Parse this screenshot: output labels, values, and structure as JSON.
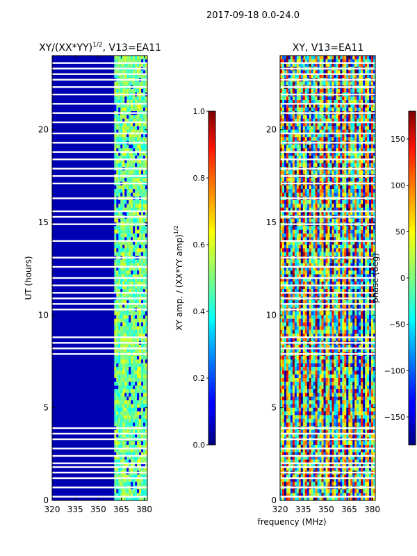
{
  "figure": {
    "suptitle": "2017-09-18 0.0-24.0"
  },
  "chart_data": [
    {
      "type": "heatmap",
      "title_text": "XY/(XX*YY)",
      "title_sup": "1/2",
      "title_rest": ", V13=EA11",
      "xlabel": "",
      "ylabel": "UT (hours)",
      "xlim": [
        320,
        382
      ],
      "ylim": [
        0,
        24
      ],
      "xticks": [
        "320",
        "335",
        "350",
        "365",
        "380"
      ],
      "xtick_values": [
        320,
        335,
        350,
        365,
        380
      ],
      "yticks": [
        "0",
        "5",
        "10",
        "15",
        "20"
      ],
      "ytick_values": [
        0,
        5,
        10,
        15,
        20
      ],
      "colorbar": {
        "label_text": "XY amp. / (XX*YY amp)",
        "label_sup": "1/2",
        "range": [
          0.0,
          1.0
        ],
        "ticks": [
          "0.0",
          "0.2",
          "0.4",
          "0.6",
          "0.8",
          "1.0"
        ],
        "tick_values": [
          0.0,
          0.2,
          0.4,
          0.6,
          0.8,
          1.0
        ]
      },
      "colormap": "jet",
      "description_values": {
        "low_band_value": 0.05,
        "high_band_start_mhz": 360,
        "high_band_value_range": [
          0.3,
          0.65
        ]
      }
    },
    {
      "type": "heatmap",
      "title": "XY, V13=EA11",
      "xlabel": "frequency (MHz)",
      "ylabel": "",
      "xlim": [
        320,
        382
      ],
      "ylim": [
        0,
        24
      ],
      "xticks": [
        "320",
        "335",
        "350",
        "365",
        "380"
      ],
      "xtick_values": [
        320,
        335,
        350,
        365,
        380
      ],
      "yticks": [
        "0",
        "5",
        "10",
        "15",
        "20"
      ],
      "ytick_values": [
        0,
        5,
        10,
        15,
        20
      ],
      "colorbar": {
        "label": "phase (deg)",
        "range": [
          -180,
          180
        ],
        "ticks": [
          "−150",
          "−100",
          "−50",
          "0",
          "50",
          "100",
          "150"
        ],
        "tick_values": [
          -150,
          -100,
          -50,
          0,
          50,
          100,
          150
        ]
      },
      "colormap": "jet"
    }
  ],
  "flagged_rows_ut": [
    0.2,
    0.7,
    1.2,
    1.5,
    1.8,
    2.0,
    2.4,
    2.8,
    3.3,
    3.6,
    3.9,
    7.9,
    8.2,
    8.5,
    8.8,
    10.3,
    10.6,
    10.9,
    11.2,
    11.6,
    12.0,
    12.6,
    13.1,
    14.0,
    14.9,
    15.3,
    15.6,
    16.3,
    17.1,
    17.5,
    17.9,
    18.4,
    18.8,
    19.3,
    19.8,
    20.4,
    20.9,
    21.4,
    21.9,
    22.3,
    22.7,
    23.0,
    23.3,
    23.6
  ]
}
